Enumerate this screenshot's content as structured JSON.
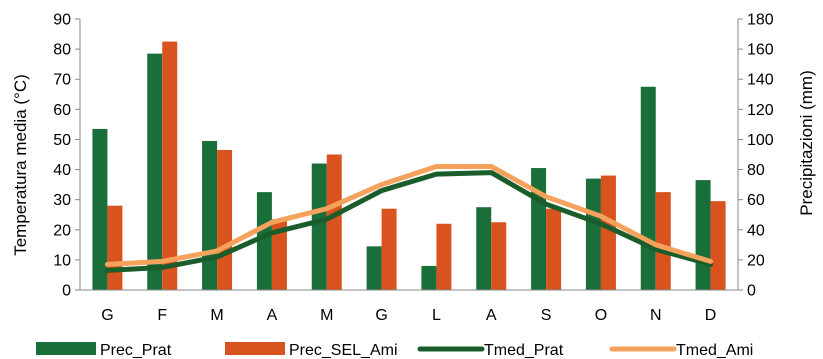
{
  "chart_data": {
    "type": "bar",
    "title": "",
    "categories": [
      "G",
      "F",
      "M",
      "A",
      "M",
      "G",
      "L",
      "A",
      "S",
      "O",
      "N",
      "D"
    ],
    "y_left": {
      "label": "Temperatura media (°C)",
      "lim": [
        0,
        90
      ],
      "ticks": [
        "0",
        "10",
        "20",
        "30",
        "40",
        "50",
        "60",
        "70",
        "80",
        "90"
      ]
    },
    "y_right": {
      "label": "Precipitazioni (mm)",
      "lim": [
        0,
        180
      ],
      "ticks": [
        "0",
        "20",
        "40",
        "60",
        "80",
        "100",
        "120",
        "140",
        "160",
        "180"
      ]
    },
    "grid": "none",
    "legend_position": "bottom",
    "bar_series": [
      {
        "name": "Prec_Prat",
        "axis": "right",
        "color": "#1a6e3a",
        "values": [
          107,
          157,
          99,
          65,
          84,
          29,
          16,
          55,
          81,
          74,
          135,
          73
        ]
      },
      {
        "name": "Prec_SEL_Ami",
        "axis": "right",
        "color": "#d9531e",
        "values": [
          56,
          165,
          93,
          47,
          90,
          54,
          44,
          45,
          54,
          76,
          65,
          59
        ]
      }
    ],
    "line_series": [
      {
        "name": "Tmed_Prat",
        "axis": "left",
        "color": "#1a5c2a",
        "values": [
          6.5,
          7.5,
          11,
          19,
          23.5,
          33,
          38.5,
          39,
          28.5,
          22,
          13.5,
          8.5
        ]
      },
      {
        "name": "Tmed_Ami",
        "axis": "left",
        "color": "#f5a25d",
        "values": [
          8.5,
          9.5,
          13,
          22.5,
          27,
          35,
          41,
          41,
          31,
          24.5,
          15,
          9.5
        ]
      }
    ]
  }
}
